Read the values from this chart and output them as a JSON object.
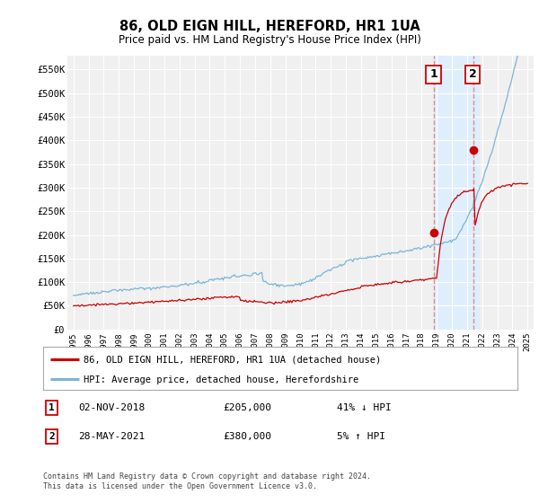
{
  "title": "86, OLD EIGN HILL, HEREFORD, HR1 1UA",
  "subtitle": "Price paid vs. HM Land Registry's House Price Index (HPI)",
  "legend_line1": "86, OLD EIGN HILL, HEREFORD, HR1 1UA (detached house)",
  "legend_line2": "HPI: Average price, detached house, Herefordshire",
  "annotation1_label": "1",
  "annotation1_date": "02-NOV-2018",
  "annotation1_price": "£205,000",
  "annotation1_hpi": "41% ↓ HPI",
  "annotation2_label": "2",
  "annotation2_date": "28-MAY-2021",
  "annotation2_price": "£380,000",
  "annotation2_hpi": "5% ↑ HPI",
  "footnote": "Contains HM Land Registry data © Crown copyright and database right 2024.\nThis data is licensed under the Open Government Licence v3.0.",
  "hpi_color": "#7ab4d8",
  "price_color": "#cc0000",
  "marker_color": "#cc0000",
  "vline_color": "#e08080",
  "shade_color": "#ddeeff",
  "ylim": [
    0,
    580000
  ],
  "yticks": [
    0,
    50000,
    100000,
    150000,
    200000,
    250000,
    300000,
    350000,
    400000,
    450000,
    500000,
    550000
  ],
  "ytick_labels": [
    "£0",
    "£50K",
    "£100K",
    "£150K",
    "£200K",
    "£250K",
    "£300K",
    "£350K",
    "£400K",
    "£450K",
    "£500K",
    "£550K"
  ],
  "shade_x_start": 2018.84,
  "shade_x_end": 2021.8,
  "point1_x": 2018.84,
  "point1_y": 205000,
  "point2_x": 2021.41,
  "point2_y": 380000,
  "bg_color": "#f0f0f0",
  "grid_color": "#ffffff",
  "xlim_start": 1994.6,
  "xlim_end": 2025.4
}
